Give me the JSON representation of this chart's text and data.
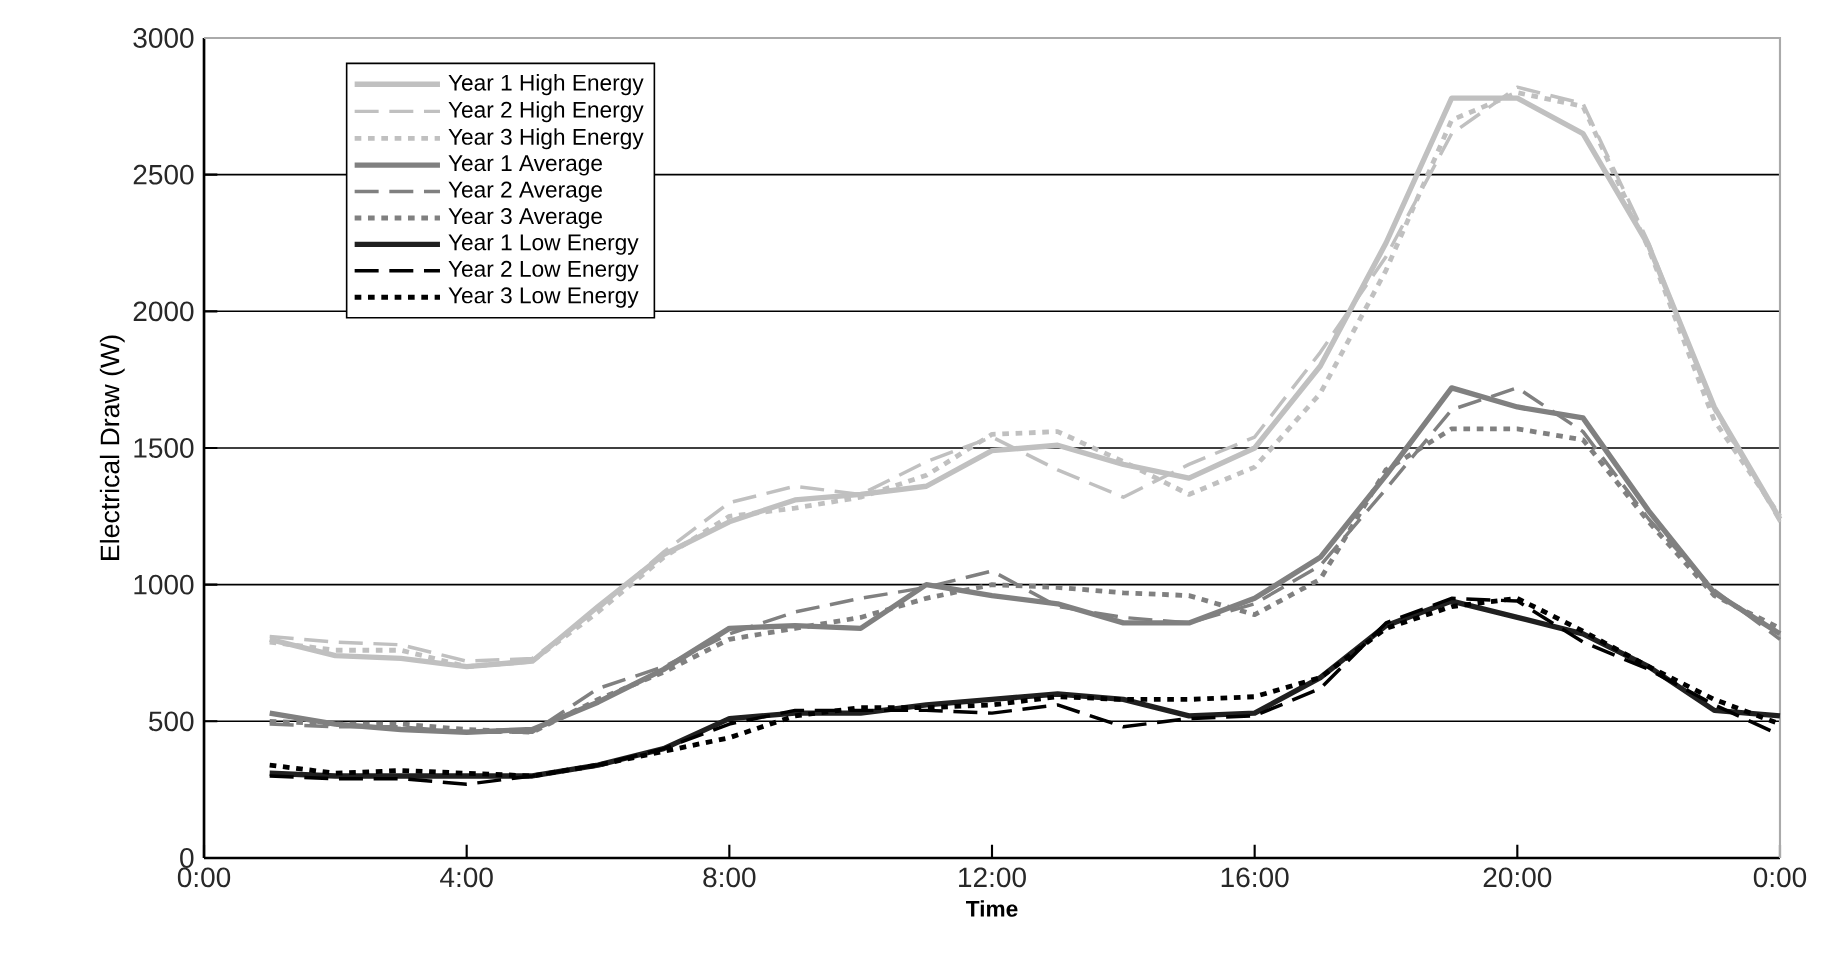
{
  "chart_data": {
    "type": "line",
    "xlabel": "Time",
    "ylabel": "Electrical Draw (W)",
    "x": [
      1,
      2,
      3,
      4,
      5,
      6,
      7,
      8,
      9,
      10,
      11,
      12,
      13,
      14,
      15,
      16,
      17,
      18,
      19,
      20,
      21,
      22,
      23,
      24
    ],
    "xlim": [
      0,
      24
    ],
    "xticks": [
      {
        "value": 0,
        "label": "0:00"
      },
      {
        "value": 4,
        "label": "4:00"
      },
      {
        "value": 8,
        "label": "8:00"
      },
      {
        "value": 12,
        "label": "12:00"
      },
      {
        "value": 16,
        "label": "16:00"
      },
      {
        "value": 20,
        "label": "20:00"
      },
      {
        "value": 24,
        "label": "0:00"
      }
    ],
    "ylim": [
      0,
      3000
    ],
    "yticks": [
      0,
      500,
      1000,
      1500,
      2000,
      2500,
      3000
    ],
    "grid": "y",
    "legend": "top left",
    "marker": "none",
    "series": [
      {
        "name": "Year 1 High Energy",
        "color": "#c0c0c0",
        "line_style": "solid",
        "values": [
          800,
          740,
          730,
          700,
          720,
          920,
          1110,
          1230,
          1310,
          1330,
          1360,
          1490,
          1510,
          1440,
          1390,
          1500,
          1800,
          2250,
          2780,
          2780,
          2650,
          2240,
          1650,
          1240
        ]
      },
      {
        "name": "Year 2 High Energy",
        "color": "#c0c0c0",
        "line_style": "dashed",
        "values": [
          810,
          790,
          780,
          720,
          730,
          910,
          1120,
          1300,
          1360,
          1330,
          1450,
          1540,
          1420,
          1320,
          1440,
          1540,
          1850,
          2200,
          2650,
          2820,
          2760,
          2250,
          1640,
          1230
        ]
      },
      {
        "name": "Year 3 High Energy",
        "color": "#c0c0c0",
        "line_style": "dotted",
        "values": [
          790,
          760,
          760,
          700,
          720,
          900,
          1100,
          1250,
          1280,
          1320,
          1400,
          1550,
          1560,
          1450,
          1330,
          1430,
          1700,
          2150,
          2700,
          2800,
          2750,
          2230,
          1600,
          1250
        ]
      },
      {
        "name": "Year 1 Average",
        "color": "#808080",
        "line_style": "solid",
        "values": [
          530,
          490,
          470,
          460,
          470,
          570,
          690,
          840,
          850,
          840,
          1000,
          960,
          930,
          860,
          860,
          950,
          1100,
          1400,
          1720,
          1650,
          1610,
          1270,
          970,
          820
        ]
      },
      {
        "name": "Year 2 Average",
        "color": "#808080",
        "line_style": "dashed",
        "values": [
          490,
          480,
          480,
          460,
          460,
          620,
          700,
          820,
          900,
          950,
          990,
          1050,
          920,
          880,
          860,
          930,
          1070,
          1350,
          1640,
          1720,
          1560,
          1240,
          980,
          800
        ]
      },
      {
        "name": "Year 3 Average",
        "color": "#808080",
        "line_style": "dotted",
        "values": [
          500,
          490,
          490,
          470,
          460,
          580,
          680,
          800,
          840,
          880,
          950,
          1000,
          990,
          970,
          960,
          890,
          1020,
          1420,
          1570,
          1570,
          1530,
          1230,
          960,
          840
        ]
      },
      {
        "name": "Year 1 Low Energy",
        "color": "#202020",
        "line_style": "solid",
        "values": [
          310,
          300,
          300,
          300,
          300,
          340,
          400,
          510,
          530,
          530,
          560,
          580,
          600,
          580,
          520,
          530,
          660,
          850,
          940,
          880,
          820,
          700,
          540,
          520
        ]
      },
      {
        "name": "Year 2 Low Energy",
        "color": "#000000",
        "line_style": "dashed",
        "values": [
          300,
          290,
          290,
          270,
          300,
          340,
          400,
          490,
          540,
          540,
          540,
          530,
          560,
          480,
          510,
          520,
          620,
          860,
          950,
          940,
          790,
          690,
          560,
          450
        ]
      },
      {
        "name": "Year 3 Low Energy",
        "color": "#000000",
        "line_style": "dotted",
        "values": [
          340,
          310,
          320,
          310,
          300,
          340,
          390,
          440,
          520,
          550,
          550,
          560,
          590,
          580,
          580,
          590,
          660,
          840,
          920,
          950,
          830,
          700,
          580,
          490
        ]
      }
    ]
  }
}
